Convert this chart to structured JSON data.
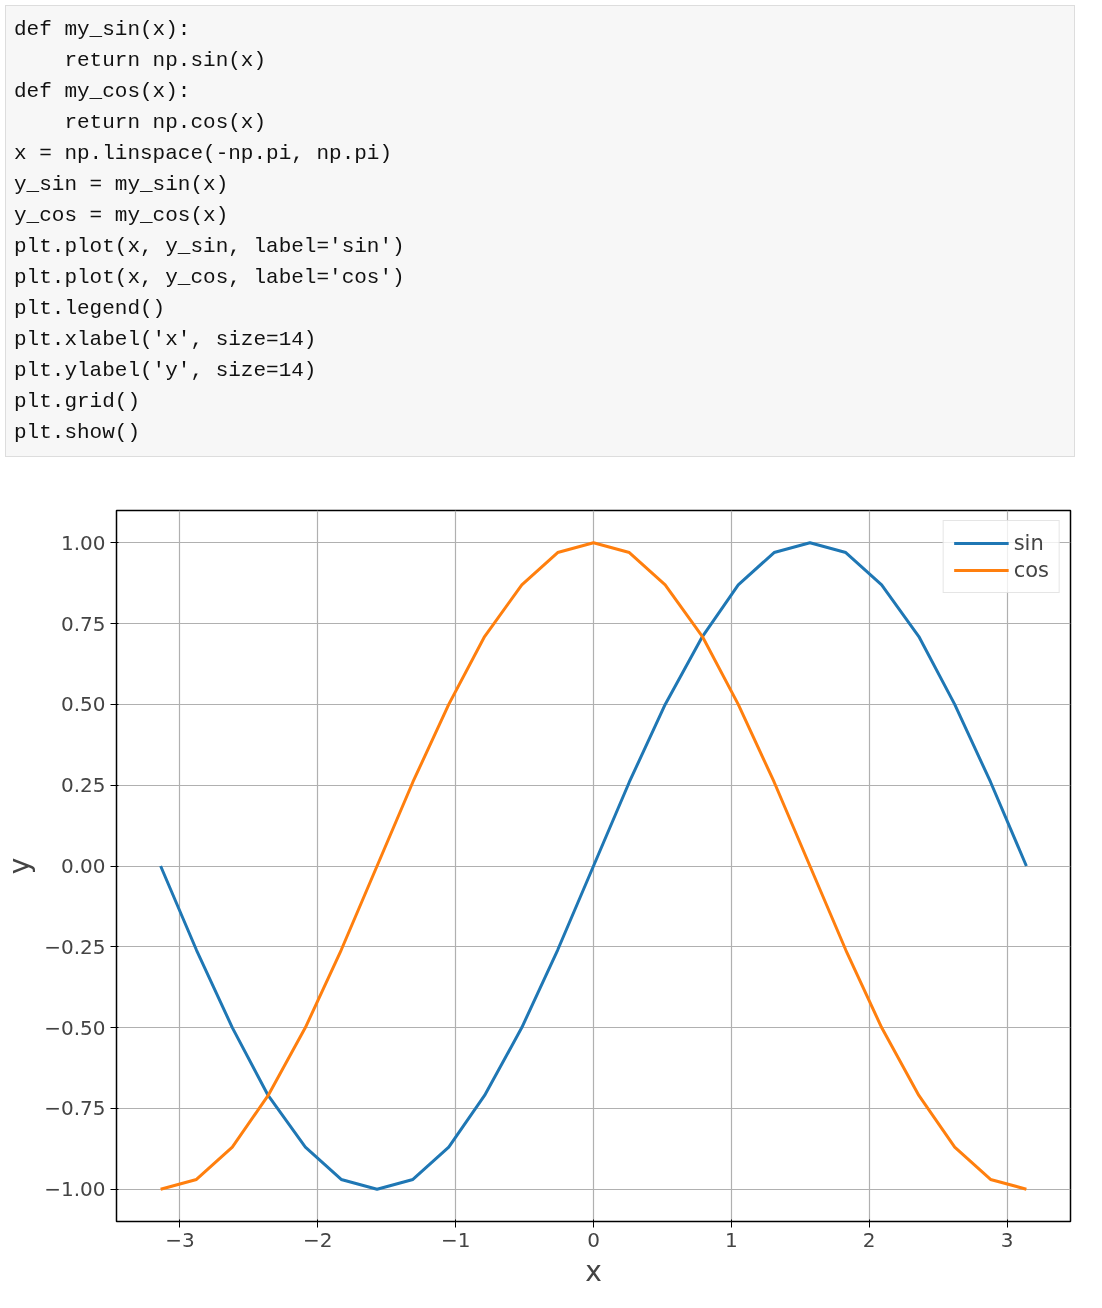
{
  "chart_data": {
    "type": "line",
    "annotations": [
      "def my_sin(x):",
      "    return np.sin(x)",
      "def my_cos(x):",
      "    return np.cos(x)",
      "x = np.linspace(-np.pi, np.pi)",
      "y_sin = my_sin(x)",
      "y_cos = my_cos(x)",
      "plt.plot(x, y_sin, label='sin')",
      "plt.plot(x, y_cos, label='cos')",
      "plt.legend()",
      "plt.xlabel('x', size=14)",
      "plt.ylabel('y', size=14)",
      "plt.grid()",
      "plt.show()"
    ],
    "xlabel": "x",
    "ylabel": "y",
    "x": [
      -3.14,
      -2.88,
      -2.62,
      -2.36,
      -2.09,
      -1.83,
      -1.57,
      -1.31,
      -1.05,
      -0.79,
      -0.52,
      -0.26,
      0,
      0.26,
      0.52,
      0.79,
      1.05,
      1.31,
      1.57,
      1.83,
      2.09,
      2.36,
      2.62,
      2.88,
      3.14
    ],
    "series": [
      {
        "name": "sin",
        "color": "#1f77b4",
        "values": [
          0,
          -0.26,
          -0.5,
          -0.71,
          -0.87,
          -0.97,
          -1,
          -0.97,
          -0.87,
          -0.71,
          -0.5,
          -0.26,
          0,
          0.26,
          0.5,
          0.71,
          0.87,
          0.97,
          1,
          0.97,
          0.87,
          0.71,
          0.5,
          0.26,
          0
        ]
      },
      {
        "name": "cos",
        "color": "#ff7f0e",
        "values": [
          -1,
          -0.97,
          -0.87,
          -0.71,
          -0.5,
          -0.26,
          0,
          0.26,
          0.5,
          0.71,
          0.87,
          0.97,
          1,
          0.97,
          0.87,
          0.71,
          0.5,
          0.26,
          0,
          -0.26,
          -0.5,
          -0.71,
          -0.87,
          -0.97,
          -1
        ]
      }
    ],
    "xlim": [
      -3.46,
      3.46
    ],
    "ylim": [
      -1.1,
      1.1
    ],
    "xticks": [
      {
        "value": -3,
        "label": "−3"
      },
      {
        "value": -2,
        "label": "−2"
      },
      {
        "value": -1,
        "label": "−1"
      },
      0,
      1,
      2,
      3
    ],
    "yticks": [
      {
        "value": -1,
        "label": "−1.00"
      },
      {
        "value": -0.75,
        "label": "−0.75"
      },
      {
        "value": -0.5,
        "label": "−0.50"
      },
      {
        "value": -0.25,
        "label": "−0.25"
      },
      {
        "value": 0,
        "label": "0.00"
      },
      {
        "value": 0.25,
        "label": "0.25"
      },
      {
        "value": 0.5,
        "label": "0.50"
      },
      {
        "value": 0.75,
        "label": "0.75"
      },
      {
        "value": 1,
        "label": "1.00"
      }
    ],
    "grid": true,
    "legend": "top right",
    "line_style": "solid",
    "marker": "none"
  }
}
